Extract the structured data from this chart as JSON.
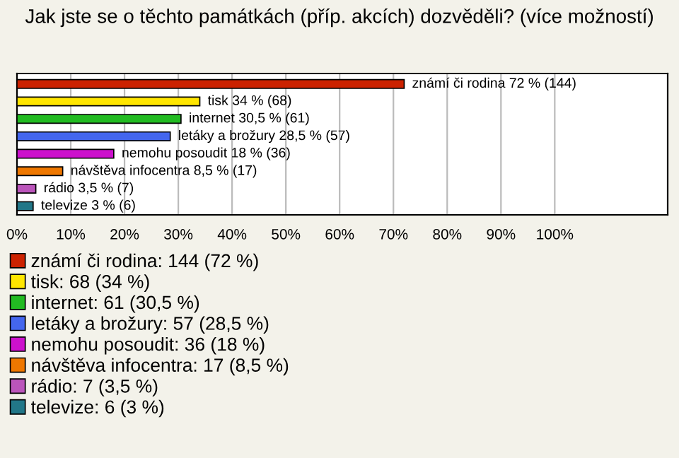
{
  "chart_data": {
    "type": "bar",
    "orientation": "horizontal",
    "title": "Jak jste se o těchto památkách (příp. akcích) dozvěděli? (více možností)",
    "categories": [
      null,
      null,
      null,
      null,
      null,
      null,
      null,
      null
    ],
    "series": [
      {
        "name": "známí či rodina: 144 (72 %)",
        "color": "#cc2200",
        "values": [
          72,
          null,
          null,
          null,
          null,
          null,
          null,
          null
        ],
        "value_labels": [
          "známí či rodina 72 % (144)",
          null,
          null,
          null,
          null,
          null,
          null,
          null
        ]
      },
      {
        "name": "tisk: 68 (34 %)",
        "color": "#ffe600",
        "values": [
          null,
          34,
          null,
          null,
          null,
          null,
          null,
          null
        ],
        "value_labels": [
          null,
          "tisk 34 % (68)",
          null,
          null,
          null,
          null,
          null,
          null
        ]
      },
      {
        "name": "internet: 61 (30,5 %)",
        "color": "#22bb22",
        "values": [
          null,
          null,
          30.5,
          null,
          null,
          null,
          null,
          null
        ],
        "value_labels": [
          null,
          null,
          "internet 30,5 % (61)",
          null,
          null,
          null,
          null,
          null
        ]
      },
      {
        "name": "letáky a brožury: 57 (28,5 %)",
        "color": "#4466ee",
        "values": [
          null,
          null,
          null,
          28.5,
          null,
          null,
          null,
          null
        ],
        "value_labels": [
          null,
          null,
          null,
          "letáky a brožury 28,5 % (57)",
          null,
          null,
          null,
          null
        ]
      },
      {
        "name": "nemohu posoudit: 36 (18 %)",
        "color": "#cc11cc",
        "values": [
          null,
          null,
          null,
          null,
          18,
          null,
          null,
          null
        ],
        "value_labels": [
          null,
          null,
          null,
          null,
          "nemohu posoudit 18 % (36)",
          null,
          null,
          null
        ]
      },
      {
        "name": "návštěva infocentra: 17 (8,5 %)",
        "color": "#ee7700",
        "values": [
          null,
          null,
          null,
          null,
          null,
          8.5,
          null,
          null
        ],
        "value_labels": [
          null,
          null,
          null,
          null,
          null,
          "návštěva infocentra 8,5 % (17)",
          null,
          null
        ]
      },
      {
        "name": "rádio: 7 (3,5 %)",
        "color": "#bb55bb",
        "values": [
          null,
          null,
          null,
          null,
          null,
          null,
          3.5,
          null
        ],
        "value_labels": [
          null,
          null,
          null,
          null,
          null,
          null,
          "rádio 3,5 % (7)",
          null
        ]
      },
      {
        "name": "televize: 6 (3 %)",
        "color": "#227788",
        "values": [
          null,
          null,
          null,
          null,
          null,
          null,
          null,
          3
        ],
        "value_labels": [
          null,
          null,
          null,
          null,
          null,
          null,
          null,
          "televize 3 % (6)"
        ]
      }
    ],
    "xlim": [
      0,
      121
    ],
    "xticks": [
      {
        "value": 0,
        "label": "0%"
      },
      {
        "value": 10,
        "label": "10%"
      },
      {
        "value": 20,
        "label": "20%"
      },
      {
        "value": 30,
        "label": "30%"
      },
      {
        "value": 40,
        "label": "40%"
      },
      {
        "value": 50,
        "label": "50%"
      },
      {
        "value": 60,
        "label": "60%"
      },
      {
        "value": 70,
        "label": "70%"
      },
      {
        "value": 80,
        "label": "80%"
      },
      {
        "value": 90,
        "label": "90%"
      },
      {
        "value": 100,
        "label": "100%"
      }
    ],
    "grid": "x",
    "legend": "bottom"
  }
}
